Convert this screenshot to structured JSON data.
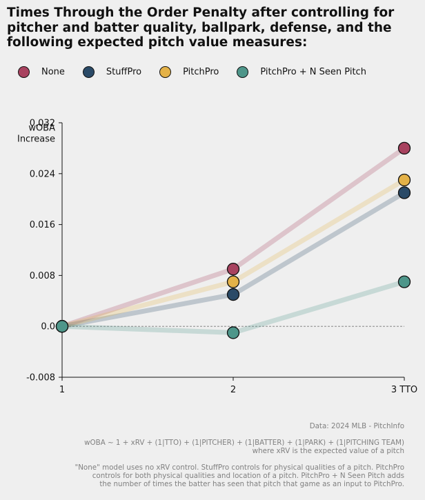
{
  "title_lines": [
    "Times Through the Order Penalty after controlling for",
    "pitcher and batter quality, ballpark, defense, and the",
    "following expected pitch value measures:"
  ],
  "chart_data": {
    "type": "line",
    "title": "Times Through the Order Penalty after controlling for pitcher and batter quality, ballpark, defense, and the following expected pitch value measures:",
    "categories": [
      "1",
      "2",
      "3 TTO"
    ],
    "x": [
      1,
      2,
      3
    ],
    "ylabel_lines": [
      "wOBA",
      "Increase"
    ],
    "ylim": [
      -0.008,
      0.032
    ],
    "yticks": [
      -0.008,
      0.0,
      0.008,
      0.016,
      0.024,
      0.032
    ],
    "ytick_labels": [
      "-0.008",
      "0.0",
      "0.008",
      "0.016",
      "0.024",
      "0.032"
    ],
    "zero_line": true,
    "legend_position": "top",
    "series": [
      {
        "name": "None",
        "values": [
          0.0,
          0.009,
          0.028
        ],
        "color": "#a8425f"
      },
      {
        "name": "StuffPro",
        "values": [
          0.0,
          0.005,
          0.021
        ],
        "color": "#2a4a67"
      },
      {
        "name": "PitchPro",
        "values": [
          0.0,
          0.007,
          0.023
        ],
        "color": "#e4b248"
      },
      {
        "name": "PitchPro + N Seen Pitch",
        "values": [
          0.0,
          -0.001,
          0.007
        ],
        "color": "#4e968a"
      }
    ]
  },
  "footer": {
    "source": "Data: 2024 MLB - PitchInfo",
    "formula_lines": [
      "wOBA ~ 1 + xRV + (1|TTO) + (1|PITCHER) + (1|BATTER) + (1|PARK) + (1|PITCHING TEAM)",
      "where xRV is the expected value of a pitch"
    ],
    "note_lines": [
      "\"None\" model uses no xRV control. StuffPro controls for physical qualities of a pitch. PitchPro",
      "controls for both physical qualities and location of a pitch. PitchPro + N Seen Pitch adds",
      "the number of times the batter has seen that pitch that game as an input to PitchPro."
    ]
  }
}
